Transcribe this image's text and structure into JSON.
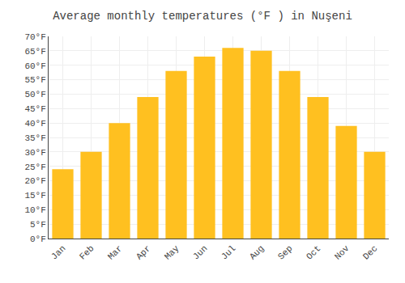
{
  "chart_data": {
    "type": "bar",
    "title": "Average monthly temperatures (°F ) in Nuşeni",
    "categories": [
      "Jan",
      "Feb",
      "Mar",
      "Apr",
      "May",
      "Jun",
      "Jul",
      "Aug",
      "Sep",
      "Oct",
      "Nov",
      "Dec"
    ],
    "values": [
      24,
      30,
      40,
      49,
      58,
      63,
      66,
      65,
      58,
      49,
      39,
      30
    ],
    "color": "#FFC020",
    "ylim": [
      0,
      70
    ],
    "yticks": [
      {
        "value": 0,
        "label": "0°F"
      },
      {
        "value": 5,
        "label": "5°F"
      },
      {
        "value": 10,
        "label": "10°F"
      },
      {
        "value": 15,
        "label": "15°F"
      },
      {
        "value": 20,
        "label": "20°F"
      },
      {
        "value": 25,
        "label": "25°F"
      },
      {
        "value": 30,
        "label": "30°F"
      },
      {
        "value": 35,
        "label": "35°F"
      },
      {
        "value": 40,
        "label": "40°F"
      },
      {
        "value": 45,
        "label": "45°F"
      },
      {
        "value": 50,
        "label": "50°F"
      },
      {
        "value": 55,
        "label": "55°F"
      },
      {
        "value": 60,
        "label": "60°F"
      },
      {
        "value": 65,
        "label": "65°F"
      },
      {
        "value": 70,
        "label": "70°F"
      }
    ],
    "grid": true
  }
}
